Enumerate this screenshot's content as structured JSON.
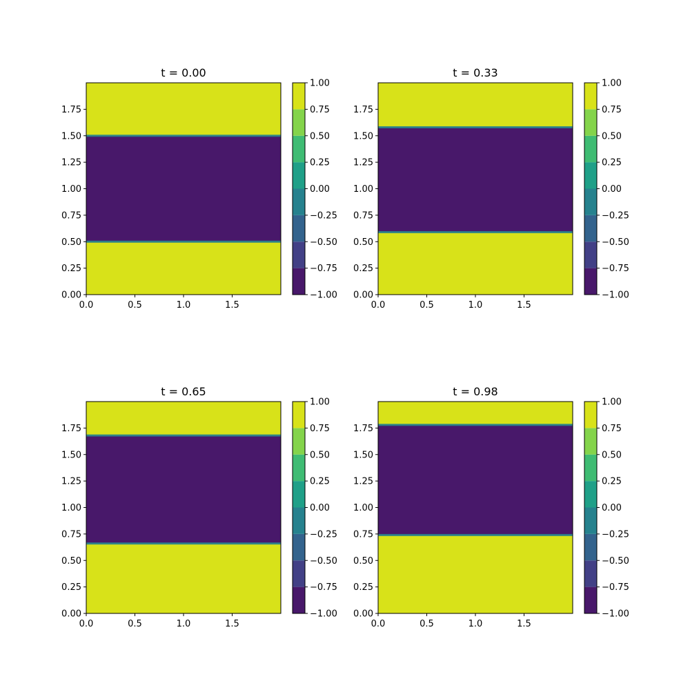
{
  "chart_data": [
    {
      "type": "contourf",
      "title": "t = 0.00",
      "xlim": [
        0,
        2
      ],
      "ylim": [
        0,
        2
      ],
      "xticks": [
        "0.0",
        "0.5",
        "1.0",
        "1.5"
      ],
      "yticks": [
        "0.00",
        "0.25",
        "0.50",
        "0.75",
        "1.00",
        "1.25",
        "1.50",
        "1.75"
      ],
      "band": {
        "lower": 0.5,
        "upper": 1.5,
        "inside_value": -1.0,
        "outside_value": 1.0
      }
    },
    {
      "type": "contourf",
      "title": "t = 0.33",
      "xlim": [
        0,
        2
      ],
      "ylim": [
        0,
        2
      ],
      "xticks": [
        "0.0",
        "0.5",
        "1.0",
        "1.5"
      ],
      "yticks": [
        "0.00",
        "0.25",
        "0.50",
        "0.75",
        "1.00",
        "1.25",
        "1.50",
        "1.75"
      ],
      "band": {
        "lower": 0.59,
        "upper": 1.58,
        "inside_value": -1.0,
        "outside_value": 1.0
      }
    },
    {
      "type": "contourf",
      "title": "t = 0.65",
      "xlim": [
        0,
        2
      ],
      "ylim": [
        0,
        2
      ],
      "xticks": [
        "0.0",
        "0.5",
        "1.0",
        "1.5"
      ],
      "yticks": [
        "0.00",
        "0.25",
        "0.50",
        "0.75",
        "1.00",
        "1.25",
        "1.50",
        "1.75"
      ],
      "band": {
        "lower": 0.66,
        "upper": 1.68,
        "inside_value": -1.0,
        "outside_value": 1.0
      }
    },
    {
      "type": "contourf",
      "title": "t = 0.98",
      "xlim": [
        0,
        2
      ],
      "ylim": [
        0,
        2
      ],
      "xticks": [
        "0.0",
        "0.5",
        "1.0",
        "1.5"
      ],
      "yticks": [
        "0.00",
        "0.25",
        "0.50",
        "0.75",
        "1.00",
        "1.25",
        "1.50",
        "1.75"
      ],
      "band": {
        "lower": 0.74,
        "upper": 1.78,
        "inside_value": -1.0,
        "outside_value": 1.0
      }
    }
  ],
  "colorbar": {
    "levels": [
      -1.0,
      -0.75,
      -0.5,
      -0.25,
      0.0,
      0.25,
      0.5,
      0.75,
      1.0
    ],
    "tick_labels": [
      "−1.00",
      "−0.75",
      "−0.50",
      "−0.25",
      "0.00",
      "0.25",
      "0.50",
      "0.75",
      "1.00"
    ],
    "colors": [
      "#48186a",
      "#424086",
      "#33638d",
      "#26828e",
      "#1fa088",
      "#3fbc73",
      "#84d44b",
      "#d8e219"
    ]
  }
}
